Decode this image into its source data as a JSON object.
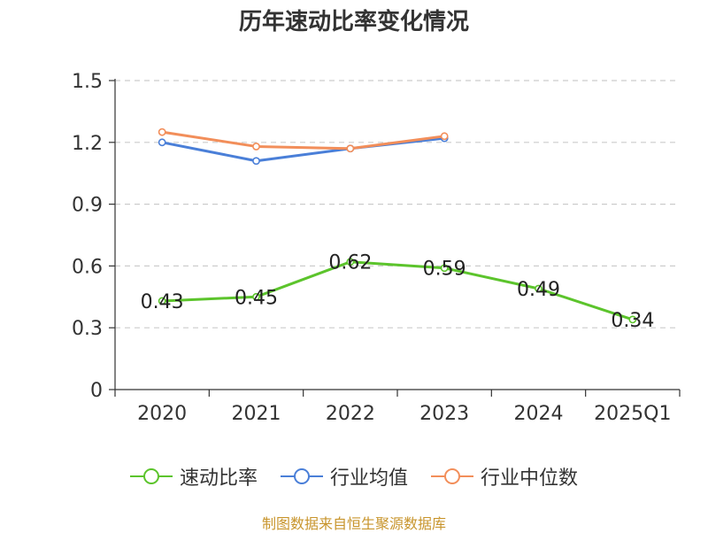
{
  "title": "历年速动比率变化情况",
  "source": "制图数据来自恒生聚源数据库",
  "chart_data": {
    "type": "line",
    "title": "历年速动比率变化情况",
    "categories": [
      "2020",
      "2021",
      "2022",
      "2023",
      "2024",
      "2025Q1"
    ],
    "ylim": [
      0,
      1.5
    ],
    "yticks": [
      "0",
      "0.3",
      "0.6",
      "0.9",
      "1.2",
      "1.5"
    ],
    "grid": true,
    "legend_position": "bottom",
    "series": [
      {
        "name": "速动比率",
        "color": "#5cc42c",
        "values": [
          0.43,
          0.45,
          0.62,
          0.59,
          0.49,
          0.34
        ],
        "labels": [
          "0.43",
          "0.45",
          "0.62",
          "0.59",
          "0.49",
          "0.34"
        ]
      },
      {
        "name": "行业均值",
        "color": "#4a7fd8",
        "values": [
          1.2,
          1.11,
          1.17,
          1.22,
          null,
          null
        ]
      },
      {
        "name": "行业中位数",
        "color": "#f28e5a",
        "values": [
          1.25,
          1.18,
          1.17,
          1.23,
          null,
          null
        ]
      }
    ]
  }
}
